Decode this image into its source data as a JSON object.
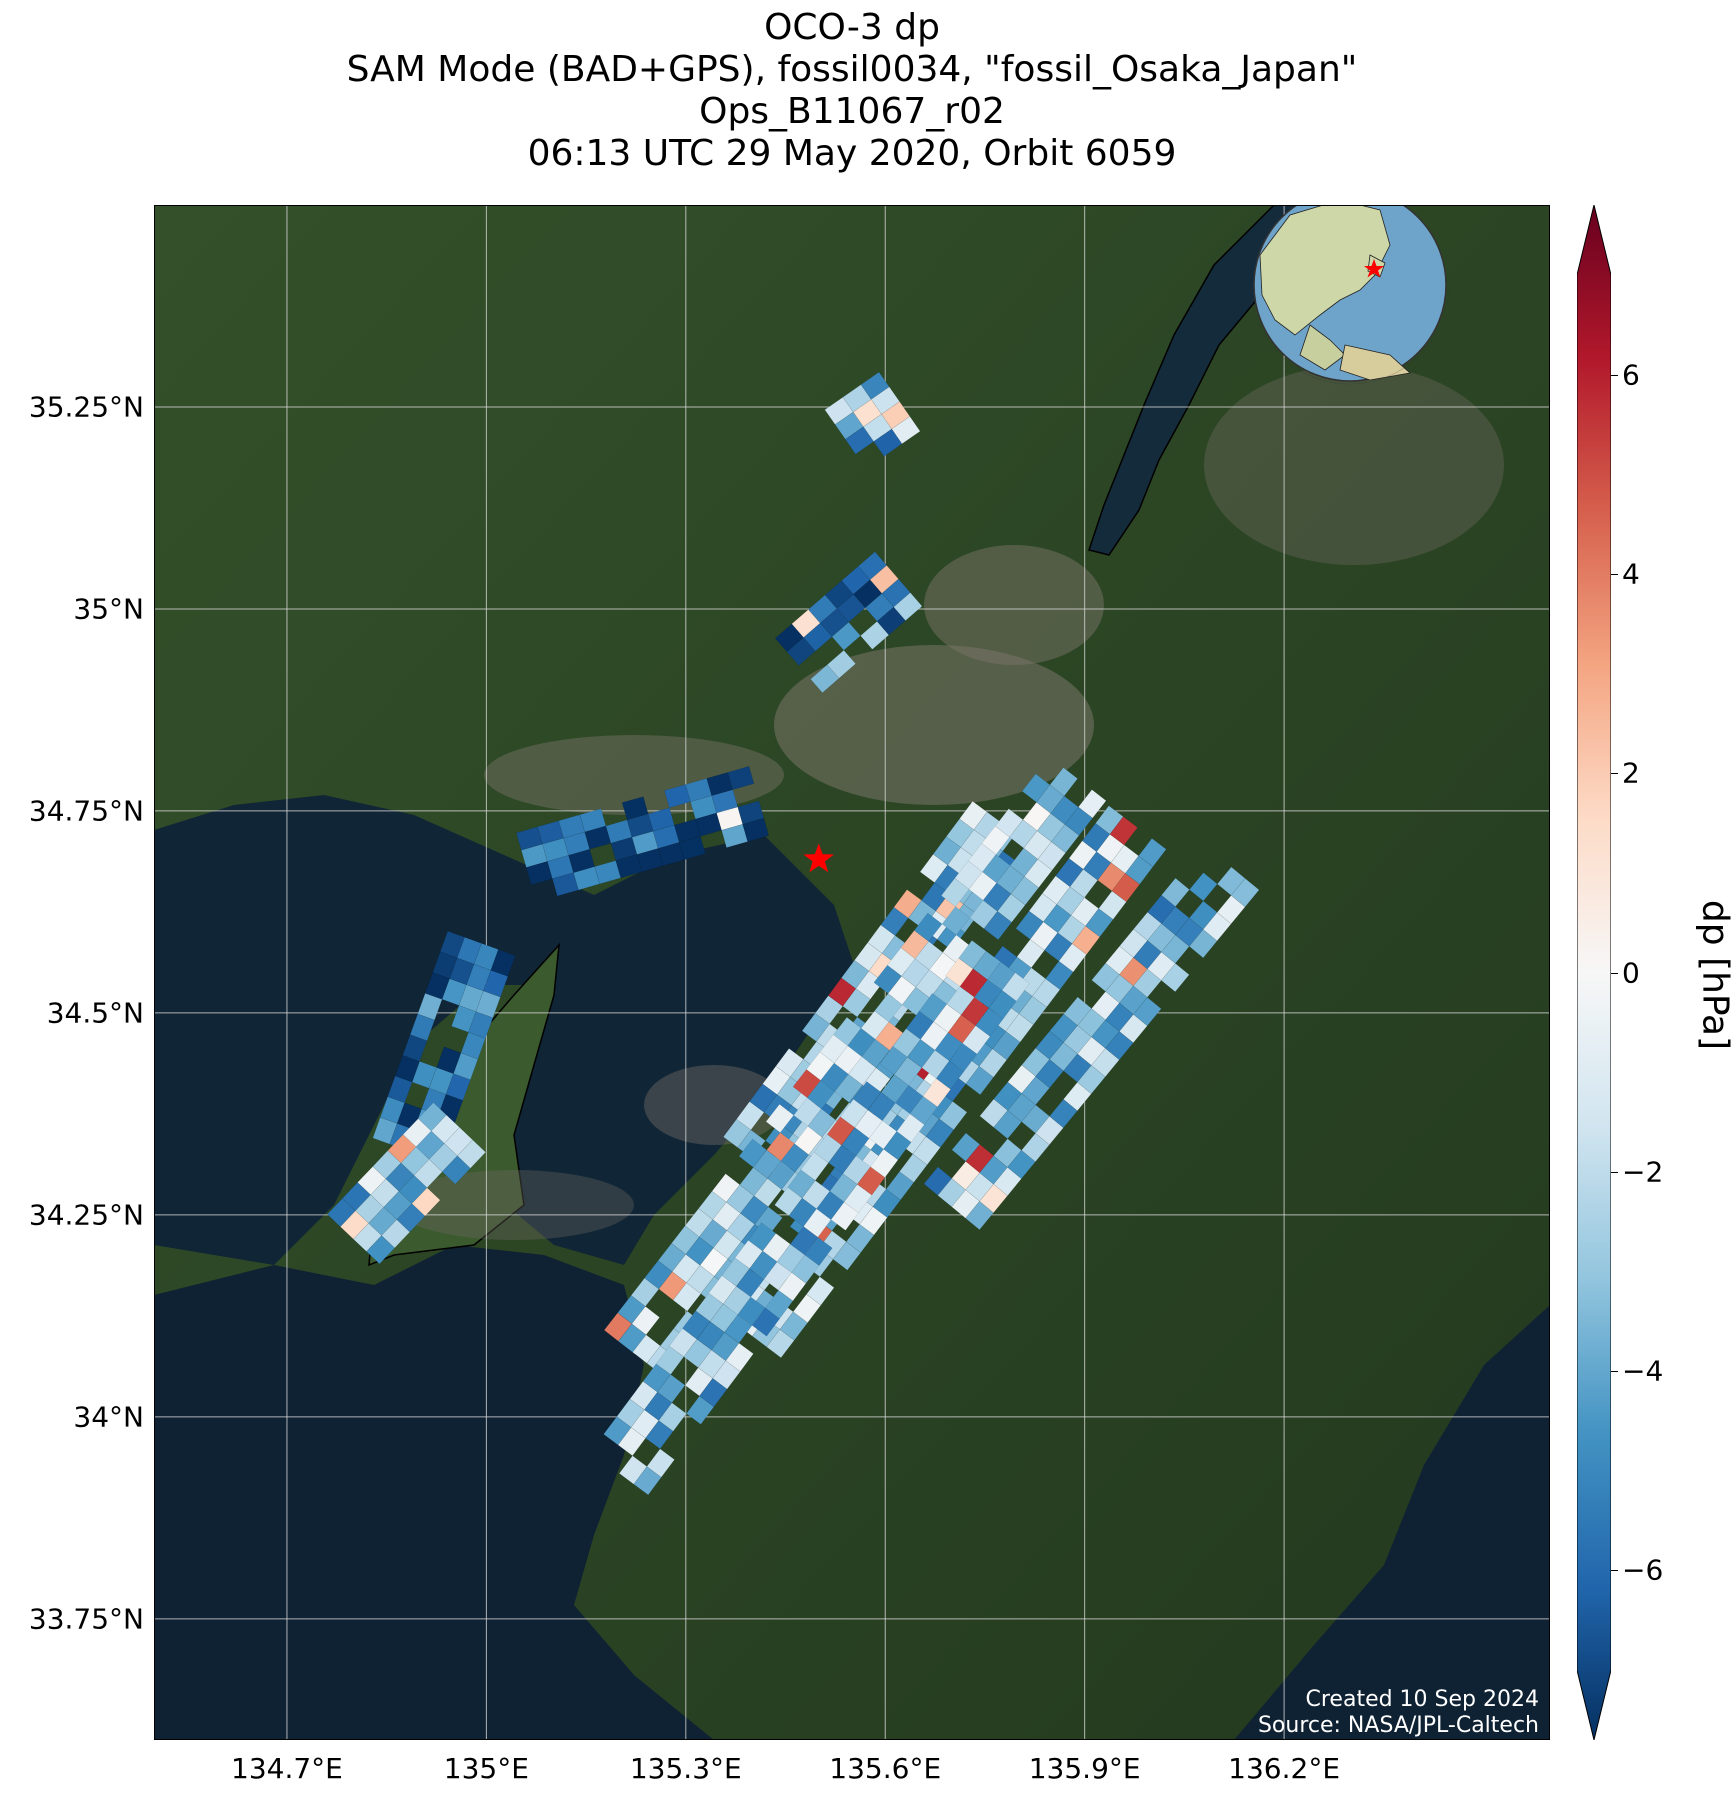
{
  "title": {
    "line1": "OCO-3 dp",
    "line2": "SAM Mode (BAD+GPS), fossil0034, \"fossil_Osaka_Japan\"",
    "line3": "Ops_B11067_r02",
    "line4": "06:13 UTC 29 May 2020, Orbit 6059"
  },
  "map": {
    "lon_range": [
      134.5,
      136.6
    ],
    "lat_range": [
      33.6,
      35.5
    ],
    "target": {
      "lon": 135.5,
      "lat": 34.69
    },
    "colors": {
      "land": "#2e4a24",
      "water": "#0f2233",
      "urban": "#7a7468",
      "grid": "#d8d8d8",
      "target": "#ff0000"
    }
  },
  "y_ticks": [
    {
      "value": 35.25,
      "label": "35.25°N"
    },
    {
      "value": 35.0,
      "label": "35°N"
    },
    {
      "value": 34.75,
      "label": "34.75°N"
    },
    {
      "value": 34.5,
      "label": "34.5°N"
    },
    {
      "value": 34.25,
      "label": "34.25°N"
    },
    {
      "value": 34.0,
      "label": "34°N"
    },
    {
      "value": 33.75,
      "label": "33.75°N"
    }
  ],
  "x_ticks": [
    {
      "value": 134.7,
      "label": "134.7°E"
    },
    {
      "value": 135.0,
      "label": "135°E"
    },
    {
      "value": 135.3,
      "label": "135.3°E"
    },
    {
      "value": 135.6,
      "label": "135.6°E"
    },
    {
      "value": 135.9,
      "label": "135.9°E"
    },
    {
      "value": 136.2,
      "label": "136.2°E"
    }
  ],
  "colorbar": {
    "label": "dp [hPa]",
    "range": [
      -7,
      7
    ],
    "ticks": [
      {
        "value": 6,
        "label": "6"
      },
      {
        "value": 4,
        "label": "4"
      },
      {
        "value": 2,
        "label": "2"
      },
      {
        "value": 0,
        "label": "0"
      },
      {
        "value": -2,
        "label": "−2"
      },
      {
        "value": -4,
        "label": "−4"
      },
      {
        "value": -6,
        "label": "−6"
      }
    ],
    "colormap": [
      "#053061",
      "#2166ac",
      "#4393c3",
      "#92c5de",
      "#d1e5f0",
      "#f7f7f7",
      "#fddbc7",
      "#f4a582",
      "#d6604d",
      "#b2182b",
      "#67001f"
    ]
  },
  "swaths": [
    {
      "start_lon": 135.4,
      "start_lat": 34.32,
      "end_lon": 135.77,
      "end_lat": 34.73,
      "mean_dp": -3.0
    },
    {
      "start_lon": 135.22,
      "start_lat": 34.08,
      "end_lon": 135.88,
      "end_lat": 34.78,
      "mean_dp": -2.4
    },
    {
      "start_lon": 135.4,
      "start_lat": 34.1,
      "end_lon": 135.98,
      "end_lat": 34.73,
      "mean_dp": -2.7
    },
    {
      "start_lon": 135.2,
      "start_lat": 33.93,
      "end_lon": 135.78,
      "end_lat": 34.57,
      "mean_dp": -2.8
    },
    {
      "start_lon": 135.7,
      "start_lat": 34.26,
      "end_lon": 136.12,
      "end_lat": 34.68,
      "mean_dp": -3.0
    },
    {
      "start_lon": 135.06,
      "start_lat": 34.68,
      "end_lon": 135.4,
      "end_lat": 34.76,
      "mean_dp": -6.2
    },
    {
      "start_lon": 134.88,
      "start_lat": 34.33,
      "end_lon": 134.99,
      "end_lat": 34.58,
      "mean_dp": -5.6
    },
    {
      "start_lon": 134.8,
      "start_lat": 34.22,
      "end_lon": 134.95,
      "end_lat": 34.35,
      "mean_dp": -2.8
    },
    {
      "start_lon": 135.47,
      "start_lat": 34.93,
      "end_lon": 135.61,
      "end_lat": 35.03,
      "mean_dp": -4.7
    },
    {
      "start_lon": 135.54,
      "start_lat": 35.21,
      "end_lon": 135.61,
      "end_lat": 35.25,
      "mean_dp": -3.2
    }
  ],
  "credit": {
    "created": "Created 10 Sep 2024",
    "source": "Source: NASA/JPL-Caltech"
  }
}
